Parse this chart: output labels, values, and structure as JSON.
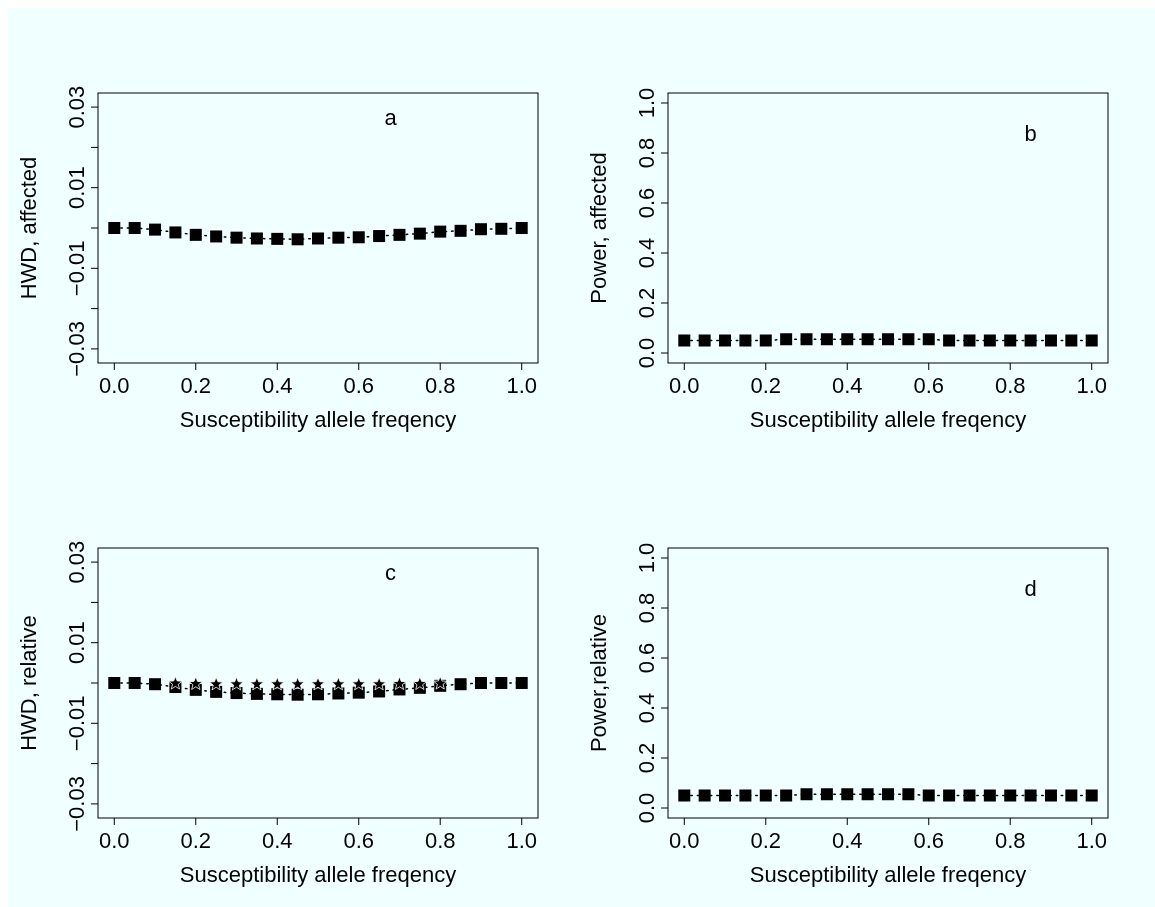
{
  "chart_data": [
    {
      "type": "line",
      "xlabel": "Susceptibility allele freqency",
      "ylabel": "HWD, affected",
      "annotations": [
        "a"
      ],
      "marker": "square",
      "line_style": "dotted",
      "grid": false,
      "x": [
        0,
        0.05,
        0.1,
        0.15,
        0.2,
        0.25,
        0.3,
        0.35,
        0.4,
        0.45,
        0.5,
        0.55,
        0.6,
        0.65,
        0.7,
        0.75,
        0.8,
        0.85,
        0.9,
        0.95,
        1
      ],
      "xlim": [
        -0.04,
        1.04
      ],
      "xticks": [
        {
          "value": 0,
          "label": "0.0"
        },
        {
          "value": 0.2,
          "label": "0.2"
        },
        {
          "value": 0.4,
          "label": "0.4"
        },
        {
          "value": 0.6,
          "label": "0.6"
        },
        {
          "value": 0.8,
          "label": "0.8"
        },
        {
          "value": 1,
          "label": "1.0"
        }
      ],
      "ylim": [
        -0.0335,
        0.0335
      ],
      "yticks": [
        -0.03,
        {
          "value": -0.02,
          "label": null
        },
        -0.01,
        {
          "value": 0,
          "label": null
        },
        0.01,
        {
          "value": 0.02,
          "label": null
        },
        0.03
      ],
      "series": [
        {
          "color": "#000000",
          "values": [
            0,
            0,
            -0.0004,
            -0.0011,
            -0.0017,
            -0.0021,
            -0.0024,
            -0.0026,
            -0.0027,
            -0.0028,
            -0.0026,
            -0.0024,
            -0.0023,
            -0.002,
            -0.0017,
            -0.0014,
            -0.0009,
            -0.0007,
            -0.0003,
            -0.0002,
            0
          ]
        }
      ]
    },
    {
      "type": "line",
      "xlabel": "Susceptibility allele freqency",
      "ylabel": "Power, affected",
      "annotations": [
        "b"
      ],
      "marker": "square",
      "line_style": "dotted",
      "grid": false,
      "x": [
        0,
        0.05,
        0.1,
        0.15,
        0.2,
        0.25,
        0.3,
        0.35,
        0.4,
        0.45,
        0.5,
        0.55,
        0.6,
        0.65,
        0.7,
        0.75,
        0.8,
        0.85,
        0.9,
        0.95,
        1
      ],
      "xlim": [
        -0.04,
        1.04
      ],
      "xticks": [
        {
          "value": 0,
          "label": "0.0"
        },
        {
          "value": 0.2,
          "label": "0.2"
        },
        {
          "value": 0.4,
          "label": "0.4"
        },
        {
          "value": 0.6,
          "label": "0.6"
        },
        {
          "value": 0.8,
          "label": "0.8"
        },
        {
          "value": 1,
          "label": "1.0"
        }
      ],
      "ylim": [
        -0.04,
        1.04
      ],
      "yticks": [
        {
          "value": 0,
          "label": "0.0"
        },
        {
          "value": 0.2,
          "label": "0.2"
        },
        {
          "value": 0.4,
          "label": "0.4"
        },
        {
          "value": 0.6,
          "label": "0.6"
        },
        {
          "value": 0.8,
          "label": "0.8"
        },
        {
          "value": 1,
          "label": "1.0"
        }
      ],
      "series": [
        {
          "color": "#000000",
          "values": [
            0.05,
            0.05,
            0.05,
            0.05,
            0.05,
            0.055,
            0.055,
            0.055,
            0.055,
            0.055,
            0.055,
            0.055,
            0.055,
            0.05,
            0.05,
            0.05,
            0.05,
            0.05,
            0.05,
            0.05,
            0.05
          ]
        }
      ]
    },
    {
      "type": "line",
      "xlabel": "Susceptibility allele freqency",
      "ylabel": "HWD, relative",
      "annotations": [
        "c"
      ],
      "marker": "square",
      "line_style": "dotted",
      "grid": false,
      "x": [
        0,
        0.05,
        0.1,
        0.15,
        0.2,
        0.25,
        0.3,
        0.35,
        0.4,
        0.45,
        0.5,
        0.55,
        0.6,
        0.65,
        0.7,
        0.75,
        0.8,
        0.85,
        0.9,
        0.95,
        1
      ],
      "xlim": [
        -0.04,
        1.04
      ],
      "xticks": [
        {
          "value": 0,
          "label": "0.0"
        },
        {
          "value": 0.2,
          "label": "0.2"
        },
        {
          "value": 0.4,
          "label": "0.4"
        },
        {
          "value": 0.6,
          "label": "0.6"
        },
        {
          "value": 0.8,
          "label": "0.8"
        },
        {
          "value": 1,
          "label": "1.0"
        }
      ],
      "ylim": [
        -0.0335,
        0.0335
      ],
      "yticks": [
        -0.03,
        {
          "value": -0.02,
          "label": null
        },
        -0.01,
        {
          "value": 0,
          "label": null
        },
        0.01,
        {
          "value": 0.02,
          "label": null
        },
        0.03
      ],
      "series": [
        {
          "color": "#000000",
          "values": [
            0,
            0,
            -0.0003,
            -0.001,
            -0.0017,
            -0.0022,
            -0.0025,
            -0.0027,
            -0.0028,
            -0.0029,
            -0.0028,
            -0.0026,
            -0.0024,
            -0.0021,
            -0.0016,
            -0.0012,
            -0.0007,
            -0.0003,
            0,
            0,
            0
          ]
        },
        {
          "type": "scatter",
          "color": "#000000",
          "marker": "star",
          "values": [
            null,
            null,
            null,
            -0.0001,
            -0.0002,
            -0.0003,
            -0.0003,
            -0.0003,
            -0.0003,
            -0.0003,
            -0.0003,
            -0.0003,
            -0.0003,
            -0.0003,
            -0.0002,
            -0.0002,
            -0.0001,
            null,
            null,
            null,
            null
          ]
        }
      ]
    },
    {
      "type": "line",
      "xlabel": "Susceptibility allele freqency",
      "ylabel": "Power,relative",
      "annotations": [
        "d"
      ],
      "marker": "square",
      "line_style": "dotted",
      "grid": false,
      "x": [
        0,
        0.05,
        0.1,
        0.15,
        0.2,
        0.25,
        0.3,
        0.35,
        0.4,
        0.45,
        0.5,
        0.55,
        0.6,
        0.65,
        0.7,
        0.75,
        0.8,
        0.85,
        0.9,
        0.95,
        1
      ],
      "xlim": [
        -0.04,
        1.04
      ],
      "xticks": [
        {
          "value": 0,
          "label": "0.0"
        },
        {
          "value": 0.2,
          "label": "0.2"
        },
        {
          "value": 0.4,
          "label": "0.4"
        },
        {
          "value": 0.6,
          "label": "0.6"
        },
        {
          "value": 0.8,
          "label": "0.8"
        },
        {
          "value": 1,
          "label": "1.0"
        }
      ],
      "ylim": [
        -0.04,
        1.04
      ],
      "yticks": [
        {
          "value": 0,
          "label": "0.0"
        },
        {
          "value": 0.2,
          "label": "0.2"
        },
        {
          "value": 0.4,
          "label": "0.4"
        },
        {
          "value": 0.6,
          "label": "0.6"
        },
        {
          "value": 0.8,
          "label": "0.8"
        },
        {
          "value": 1,
          "label": "1.0"
        }
      ],
      "series": [
        {
          "color": "#000000",
          "values": [
            0.05,
            0.05,
            0.05,
            0.05,
            0.05,
            0.05,
            0.055,
            0.055,
            0.055,
            0.055,
            0.055,
            0.055,
            0.05,
            0.05,
            0.05,
            0.05,
            0.05,
            0.05,
            0.05,
            0.05,
            0.05
          ]
        }
      ]
    }
  ]
}
